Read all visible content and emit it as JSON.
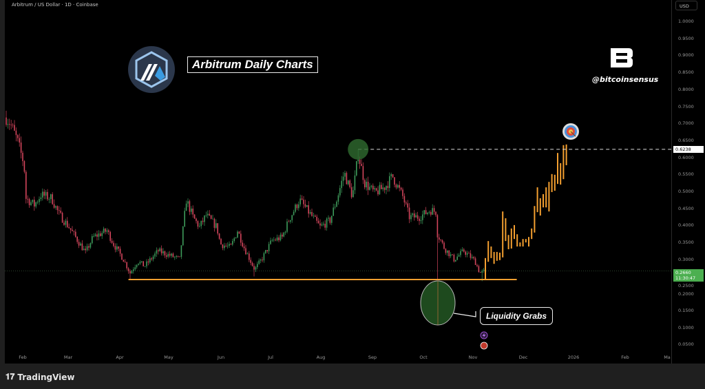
{
  "header": {
    "title": "Arbitrum / US Dollar · 1D · Coinbase"
  },
  "axis": {
    "currency": "USD",
    "price_ticks": [
      "1.0000",
      "0.9500",
      "0.9000",
      "0.8500",
      "0.8000",
      "0.7500",
      "0.7000",
      "0.6500",
      "0.6000",
      "0.5500",
      "0.5000",
      "0.4500",
      "0.4000",
      "0.3500",
      "0.3000",
      "0.2500",
      "0.2000",
      "0.1500",
      "0.1000",
      "0.0500"
    ],
    "time_ticks": [
      "Feb",
      "Mar",
      "Apr",
      "May",
      "Jun",
      "Jul",
      "Aug",
      "Sep",
      "Oct",
      "Nov",
      "Dec",
      "2026",
      "Feb",
      "Ma"
    ],
    "target_label": "0.6238",
    "last_price": "0.2660",
    "countdown": "11:30:47"
  },
  "annotations": {
    "banner": "Arbitrum Daily Charts",
    "handle": "@bitcoinsensus",
    "liquidity": "Liquidity Grabs",
    "brand_logo": "B"
  },
  "footer": {
    "brand": "TradingView"
  },
  "colors": {
    "up": "#3e9b5b",
    "down": "#d4455c",
    "projection": "#f5a030",
    "support": "#f5a030",
    "last": "#4caf50"
  },
  "chart_data": {
    "type": "candlestick",
    "x_unit": "day of year 2025",
    "ylim": [
      0.03,
      1.04
    ],
    "path": [
      [
        20.6,
        0.72
      ],
      [
        23.5,
        0.7
      ],
      [
        27.7,
        0.65
      ],
      [
        31.8,
        0.58
      ],
      [
        33,
        0.48
      ],
      [
        38,
        0.46
      ],
      [
        42,
        0.49
      ],
      [
        48.5,
        0.48
      ],
      [
        52.7,
        0.435
      ],
      [
        59,
        0.395
      ],
      [
        63,
        0.365
      ],
      [
        69,
        0.32
      ],
      [
        73.5,
        0.365
      ],
      [
        82,
        0.385
      ],
      [
        86,
        0.345
      ],
      [
        92,
        0.3
      ],
      [
        96,
        0.26
      ],
      [
        100.6,
        0.295
      ],
      [
        104.75,
        0.28
      ],
      [
        113,
        0.325
      ],
      [
        121,
        0.31
      ],
      [
        126,
        0.3
      ],
      [
        130,
        0.475
      ],
      [
        134,
        0.425
      ],
      [
        138,
        0.395
      ],
      [
        142,
        0.43
      ],
      [
        148.5,
        0.395
      ],
      [
        150.6,
        0.345
      ],
      [
        156.8,
        0.335
      ],
      [
        161,
        0.385
      ],
      [
        165,
        0.335
      ],
      [
        171.4,
        0.27
      ],
      [
        175.6,
        0.3
      ],
      [
        181.8,
        0.355
      ],
      [
        188,
        0.365
      ],
      [
        192,
        0.415
      ],
      [
        198.5,
        0.475
      ],
      [
        204.75,
        0.435
      ],
      [
        211,
        0.395
      ],
      [
        217,
        0.415
      ],
      [
        221,
        0.475
      ],
      [
        225.6,
        0.555
      ],
      [
        230.6,
        0.485
      ],
      [
        234,
        0.61
      ],
      [
        238,
        0.525
      ],
      [
        244,
        0.495
      ],
      [
        250.6,
        0.515
      ],
      [
        254.75,
        0.545
      ],
      [
        261,
        0.485
      ],
      [
        265,
        0.425
      ],
      [
        271,
        0.425
      ],
      [
        277.7,
        0.445
      ],
      [
        281,
        0.44
      ],
      [
        282,
        0.375
      ],
      [
        286,
        0.335
      ],
      [
        292,
        0.3
      ],
      [
        298,
        0.325
      ],
      [
        304.75,
        0.295
      ],
      [
        307.7,
        0.26
      ],
      [
        311,
        0.266
      ]
    ],
    "wick_extremes": [
      {
        "day": 234,
        "high": 0.624
      },
      {
        "day": 282,
        "low": 0.239
      },
      {
        "day": 96,
        "low": 0.241
      },
      {
        "day": 171,
        "low": 0.25
      },
      {
        "day": 309,
        "low": 0.236
      }
    ],
    "projection": {
      "start_day": 311,
      "step_days": 1.75,
      "bars": [
        [
          0.239,
          0.304
        ],
        [
          0.293,
          0.354
        ],
        [
          0.304,
          0.338
        ],
        [
          0.287,
          0.322
        ],
        [
          0.296,
          0.322
        ],
        [
          0.298,
          0.32
        ],
        [
          0.306,
          0.441
        ],
        [
          0.354,
          0.421
        ],
        [
          0.33,
          0.372
        ],
        [
          0.332,
          0.391
        ],
        [
          0.36,
          0.401
        ],
        [
          0.338,
          0.374
        ],
        [
          0.338,
          0.35
        ],
        [
          0.338,
          0.36
        ],
        [
          0.35,
          0.36
        ],
        [
          0.338,
          0.366
        ],
        [
          0.36,
          0.391
        ],
        [
          0.379,
          0.457
        ],
        [
          0.439,
          0.512
        ],
        [
          0.429,
          0.48
        ],
        [
          0.453,
          0.492
        ],
        [
          0.453,
          0.512
        ],
        [
          0.441,
          0.528
        ],
        [
          0.498,
          0.551
        ],
        [
          0.502,
          0.549
        ],
        [
          0.522,
          0.613
        ],
        [
          0.52,
          0.583
        ],
        [
          0.536,
          0.636
        ],
        [
          0.577,
          0.638
        ]
      ]
    },
    "support_level": 0.241,
    "support_range_days": [
      95,
      330
    ],
    "resistance_level": 0.6238,
    "resistance_start_day": 234,
    "last_price": 0.266
  }
}
